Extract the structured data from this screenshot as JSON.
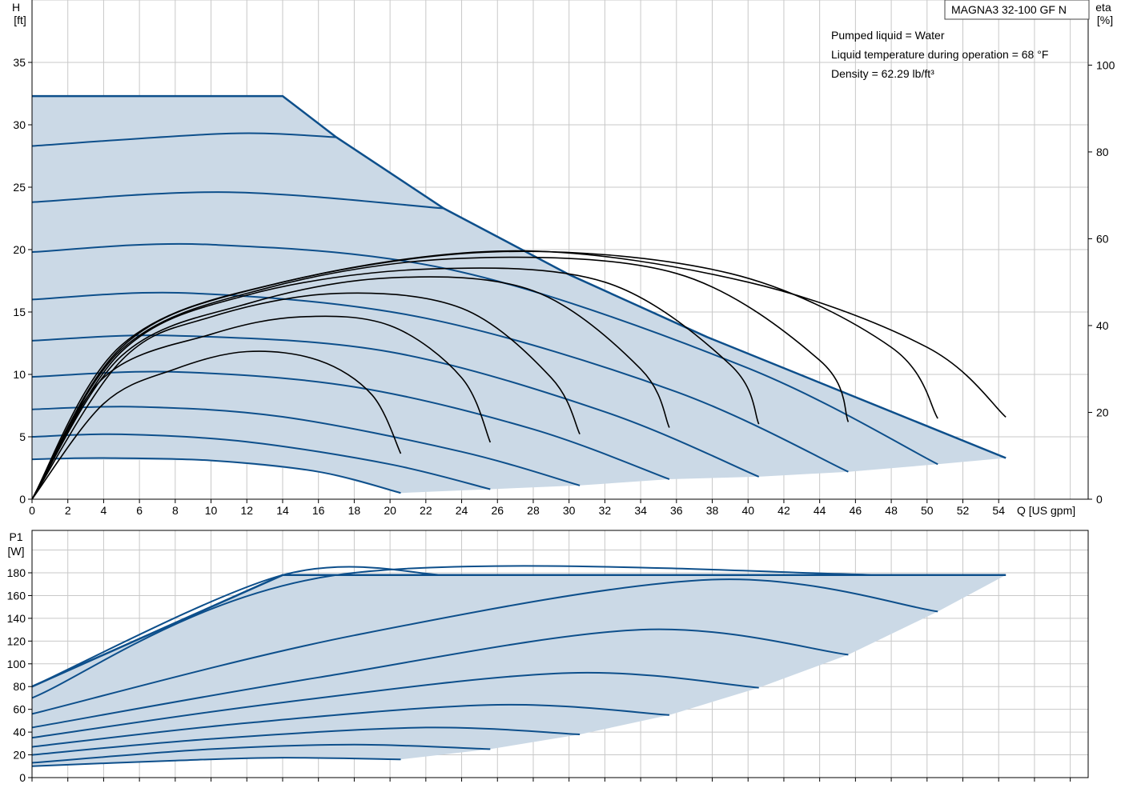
{
  "title_box": "MAGNA3 32-100 GF N",
  "info_lines": [
    "Pumped liquid = Water",
    "Liquid temperature during operation = 68 °F",
    "Density = 62.29 lb/ft³"
  ],
  "chart_data": [
    {
      "type": "line",
      "name": "head-efficiency",
      "ylabel": "H",
      "yunit": "[ft]",
      "y2label": "eta",
      "y2unit": "[%]",
      "xlabel": "Q [US gpm]",
      "xlim": [
        0,
        59
      ],
      "ylim": [
        0,
        40
      ],
      "y2lim": [
        0,
        115
      ],
      "xticks": [
        0,
        2,
        4,
        6,
        8,
        10,
        12,
        14,
        16,
        18,
        20,
        22,
        24,
        26,
        28,
        30,
        32,
        34,
        36,
        38,
        40,
        42,
        44,
        46,
        48,
        50,
        52,
        54
      ],
      "yticks": [
        0,
        5,
        10,
        15,
        20,
        25,
        30,
        35
      ],
      "y2ticks": [
        0,
        20,
        40,
        60,
        80,
        100
      ],
      "grid": true,
      "envelope": {
        "max_curve": [
          [
            0,
            32.3
          ],
          [
            14,
            32.3
          ],
          [
            17,
            29
          ],
          [
            23,
            23.3
          ],
          [
            30,
            18
          ],
          [
            37.7,
            13
          ],
          [
            54.4,
            3.3
          ]
        ],
        "min_curve_end": [
          [
            20.6,
            0.5
          ],
          [
            25.6,
            0.8
          ],
          [
            30.6,
            1.1
          ],
          [
            35.6,
            1.6
          ],
          [
            40.6,
            1.8
          ],
          [
            45.6,
            2.2
          ],
          [
            50.6,
            2.8
          ],
          [
            54.4,
            3.3
          ]
        ]
      },
      "head_curves": [
        {
          "points": [
            [
              0,
              3.2
            ],
            [
              4,
              3.3
            ],
            [
              10,
              3.1
            ],
            [
              16,
              2.2
            ],
            [
              20.6,
              0.5
            ]
          ]
        },
        {
          "points": [
            [
              0,
              5.0
            ],
            [
              5,
              5.2
            ],
            [
              12,
              4.6
            ],
            [
              20,
              2.8
            ],
            [
              25.6,
              0.8
            ]
          ]
        },
        {
          "points": [
            [
              0,
              7.2
            ],
            [
              6,
              7.4
            ],
            [
              14,
              6.6
            ],
            [
              24,
              3.8
            ],
            [
              30.6,
              1.1
            ]
          ]
        },
        {
          "points": [
            [
              0,
              9.8
            ],
            [
              8,
              10.2
            ],
            [
              18,
              9.0
            ],
            [
              28,
              5.6
            ],
            [
              35.6,
              1.6
            ]
          ]
        },
        {
          "points": [
            [
              0,
              12.7
            ],
            [
              8,
              13.1
            ],
            [
              20,
              11.8
            ],
            [
              32,
              7.0
            ],
            [
              40.6,
              1.8
            ]
          ]
        },
        {
          "points": [
            [
              0,
              16.0
            ],
            [
              9,
              16.5
            ],
            [
              22,
              14.5
            ],
            [
              36,
              8.6
            ],
            [
              45.6,
              2.2
            ]
          ]
        },
        {
          "points": [
            [
              0,
              19.8
            ],
            [
              10,
              20.4
            ],
            [
              24,
              18.2
            ],
            [
              40,
              10.5
            ],
            [
              50.6,
              2.8
            ]
          ]
        },
        {
          "points": [
            [
              0,
              23.8
            ],
            [
              11,
              24.6
            ],
            [
              23,
              23.3
            ]
          ]
        },
        {
          "points": [
            [
              0,
              28.3
            ],
            [
              11,
              29.3
            ],
            [
              17,
              29.0
            ]
          ]
        }
      ],
      "efficiency_curves": [
        {
          "points": [
            [
              0,
              0
            ],
            [
              4,
              22
            ],
            [
              8,
              30
            ],
            [
              12,
              34
            ],
            [
              16,
              32
            ],
            [
              19,
              24
            ],
            [
              20.6,
              10.5
            ]
          ]
        },
        {
          "points": [
            [
              0,
              0
            ],
            [
              4,
              28
            ],
            [
              10,
              38
            ],
            [
              15,
              42
            ],
            [
              20,
              40
            ],
            [
              24,
              28
            ],
            [
              25.6,
              13.1
            ]
          ]
        },
        {
          "points": [
            [
              0,
              0
            ],
            [
              5,
              32
            ],
            [
              10,
              42
            ],
            [
              17,
              47.4
            ],
            [
              24,
              44
            ],
            [
              29,
              28
            ],
            [
              30.6,
              15
            ]
          ]
        },
        {
          "points": [
            [
              0,
              0
            ],
            [
              5,
              33
            ],
            [
              12,
              45
            ],
            [
              20,
              51
            ],
            [
              28,
              48
            ],
            [
              34,
              30
            ],
            [
              35.6,
              16.5
            ]
          ]
        },
        {
          "points": [
            [
              0,
              0
            ],
            [
              5,
              34
            ],
            [
              12,
              47
            ],
            [
              22,
              53
            ],
            [
              32,
              50
            ],
            [
              39,
              31
            ],
            [
              40.6,
              17.3
            ]
          ]
        },
        {
          "points": [
            [
              0,
              0
            ],
            [
              5,
              34.5
            ],
            [
              13,
              48.5
            ],
            [
              24,
              55.5
            ],
            [
              36,
              52
            ],
            [
              44,
              32
            ],
            [
              45.6,
              17.8
            ]
          ]
        },
        {
          "points": [
            [
              0,
              0
            ],
            [
              5,
              35
            ],
            [
              13,
              49
            ],
            [
              26,
              57
            ],
            [
              39,
              52
            ],
            [
              48,
              35
            ],
            [
              50.6,
              18.6
            ]
          ]
        },
        {
          "points": [
            [
              0,
              0
            ],
            [
              5,
              35.5
            ],
            [
              14,
              50
            ],
            [
              27,
              57.2
            ],
            [
              40,
              50
            ],
            [
              50,
              35
            ],
            [
              54.4,
              18.9
            ]
          ]
        }
      ]
    },
    {
      "type": "line",
      "name": "power",
      "ylabel": "P1",
      "yunit": "[W]",
      "xlim": [
        0,
        59
      ],
      "ylim": [
        0,
        200
      ],
      "yticks": [
        0,
        20,
        40,
        60,
        80,
        100,
        120,
        140,
        160,
        180
      ],
      "grid": true,
      "envelope": {
        "max_curve": [
          [
            0,
            80
          ],
          [
            14,
            178
          ],
          [
            54.4,
            178
          ]
        ],
        "min_curve_end": [
          [
            20.6,
            16
          ],
          [
            25.6,
            25
          ],
          [
            30.6,
            38
          ],
          [
            35.6,
            55
          ],
          [
            40.6,
            79
          ],
          [
            45.6,
            108
          ],
          [
            50.6,
            146
          ],
          [
            54.4,
            178
          ]
        ]
      },
      "power_curves": [
        {
          "points": [
            [
              0,
              10
            ],
            [
              8,
              15
            ],
            [
              14,
              17.5
            ],
            [
              20.6,
              16
            ]
          ]
        },
        {
          "points": [
            [
              0,
              13
            ],
            [
              10,
              25
            ],
            [
              18,
              29
            ],
            [
              25.6,
              25
            ]
          ]
        },
        {
          "points": [
            [
              0,
              20
            ],
            [
              10,
              34
            ],
            [
              22,
              44
            ],
            [
              30.6,
              38
            ]
          ]
        },
        {
          "points": [
            [
              0,
              27
            ],
            [
              12,
              48
            ],
            [
              26,
              64
            ],
            [
              35.6,
              55
            ]
          ]
        },
        {
          "points": [
            [
              0,
              35
            ],
            [
              14,
              66
            ],
            [
              30,
              92
            ],
            [
              40.6,
              79
            ]
          ]
        },
        {
          "points": [
            [
              0,
              44
            ],
            [
              16,
              88
            ],
            [
              34,
              130
            ],
            [
              45.6,
              108
            ]
          ]
        },
        {
          "points": [
            [
              0,
              56
            ],
            [
              18,
              125
            ],
            [
              38,
              174
            ],
            [
              50.6,
              146
            ]
          ]
        },
        {
          "points": [
            [
              0,
              70
            ],
            [
              17,
              178
            ],
            [
              48,
              178
            ]
          ]
        },
        {
          "points": [
            [
              0,
              80
            ],
            [
              14,
              178
            ],
            [
              23,
              178
            ]
          ]
        }
      ]
    }
  ],
  "colors": {
    "curve": "#0d4f8b",
    "fill": "#cbd9e6",
    "grid": "#c8c8c8",
    "efficiency": "#000000"
  }
}
